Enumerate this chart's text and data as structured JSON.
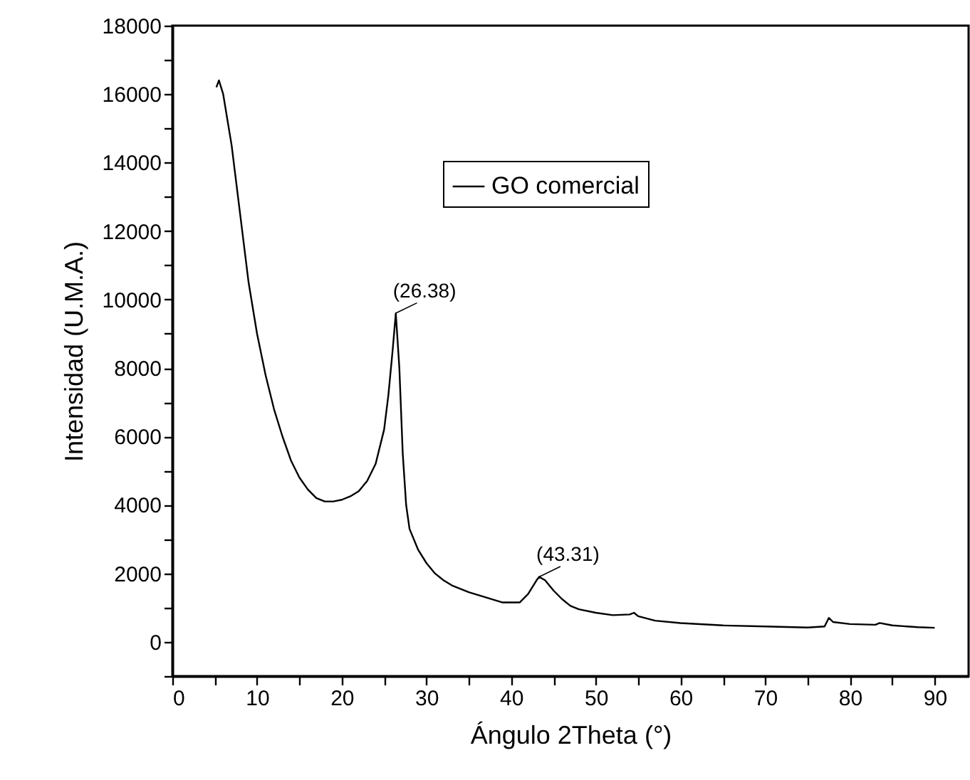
{
  "chart_data": {
    "type": "line",
    "xlabel": "Ángulo 2Theta (°)",
    "ylabel": "Intensidad  (U.M.A.)",
    "x": [
      5.2,
      5.5,
      6,
      7,
      8,
      9,
      10,
      11,
      12,
      13,
      14,
      15,
      16,
      17,
      18,
      19,
      20,
      21,
      22,
      23,
      24,
      25,
      25.5,
      26,
      26.38,
      26.8,
      27.2,
      27.6,
      28,
      29,
      30,
      31,
      32,
      33,
      35,
      37,
      39,
      40,
      41,
      42,
      43,
      43.31,
      44,
      45,
      46,
      47,
      48,
      50,
      52,
      54,
      54.5,
      55,
      57,
      60,
      65,
      70,
      75,
      77,
      77.5,
      78,
      80,
      83,
      83.5,
      85,
      88,
      90
    ],
    "series": [
      {
        "name": "GO comercial",
        "color": "#000000",
        "values": [
          16200,
          16400,
          16000,
          14500,
          12500,
          10500,
          9000,
          7800,
          6800,
          6000,
          5300,
          4800,
          4450,
          4200,
          4100,
          4100,
          4150,
          4250,
          4400,
          4700,
          5200,
          6200,
          7200,
          8500,
          9600,
          8000,
          5500,
          4000,
          3300,
          2700,
          2300,
          2000,
          1800,
          1650,
          1450,
          1300,
          1150,
          1150,
          1150,
          1400,
          1800,
          1900,
          1800,
          1500,
          1250,
          1050,
          950,
          850,
          780,
          800,
          850,
          750,
          620,
          550,
          480,
          450,
          420,
          450,
          700,
          580,
          520,
          500,
          550,
          480,
          430,
          410
        ]
      }
    ],
    "xlim": [
      0,
      94
    ],
    "ylim": [
      -1000,
      18000
    ],
    "xticks": [
      0,
      {
        "value": 5,
        "label": null
      },
      10,
      {
        "value": 15,
        "label": null
      },
      20,
      {
        "value": 25,
        "label": null
      },
      30,
      {
        "value": 35,
        "label": null
      },
      40,
      {
        "value": 45,
        "label": null
      },
      50,
      {
        "value": 55,
        "label": null
      },
      60,
      {
        "value": 65,
        "label": null
      },
      70,
      {
        "value": 75,
        "label": null
      },
      80,
      {
        "value": 85,
        "label": null
      },
      90
    ],
    "yticks": [
      {
        "value": -1000,
        "label": null
      },
      0,
      {
        "value": 1000,
        "label": null
      },
      2000,
      {
        "value": 3000,
        "label": null
      },
      4000,
      {
        "value": 5000,
        "label": null
      },
      6000,
      {
        "value": 7000,
        "label": null
      },
      8000,
      {
        "value": 9000,
        "label": null
      },
      10000,
      {
        "value": 11000,
        "label": null
      },
      12000,
      {
        "value": 13000,
        "label": null
      },
      14000,
      {
        "value": 15000,
        "label": null
      },
      16000,
      {
        "value": 17000,
        "label": null
      },
      18000
    ],
    "annotations": [
      {
        "text": "(26.38)",
        "x": 26.38,
        "y": 9600
      },
      {
        "text": "(43.31)",
        "x": 43.31,
        "y": 1900
      }
    ],
    "legend": "top",
    "grid": false,
    "marker": "none",
    "line_style": "solid"
  }
}
